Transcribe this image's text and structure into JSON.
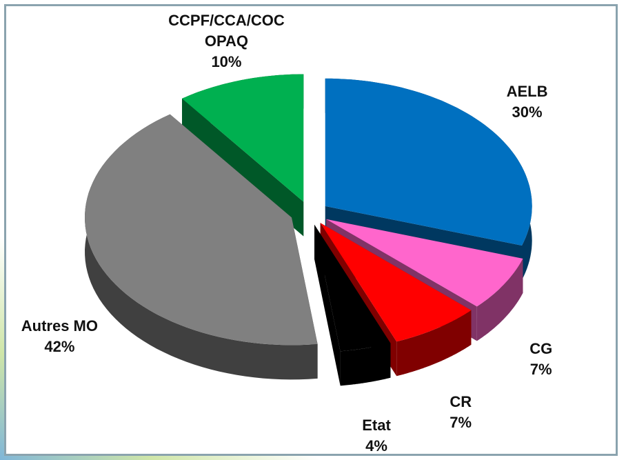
{
  "chart_data": {
    "type": "pie",
    "categories": [
      "AELB",
      "CG",
      "CR",
      "Etat",
      "Autres MO",
      "CCPF/CCA/COCOPAQ"
    ],
    "values": [
      30,
      7,
      7,
      4,
      42,
      10
    ],
    "value_labels": [
      "30%",
      "7%",
      "7%",
      "4%",
      "42%",
      "10%"
    ],
    "colors": [
      "#0070c0",
      "#ff66cc",
      "#ff0000",
      "#000000",
      "#808080",
      "#00b050"
    ]
  }
}
